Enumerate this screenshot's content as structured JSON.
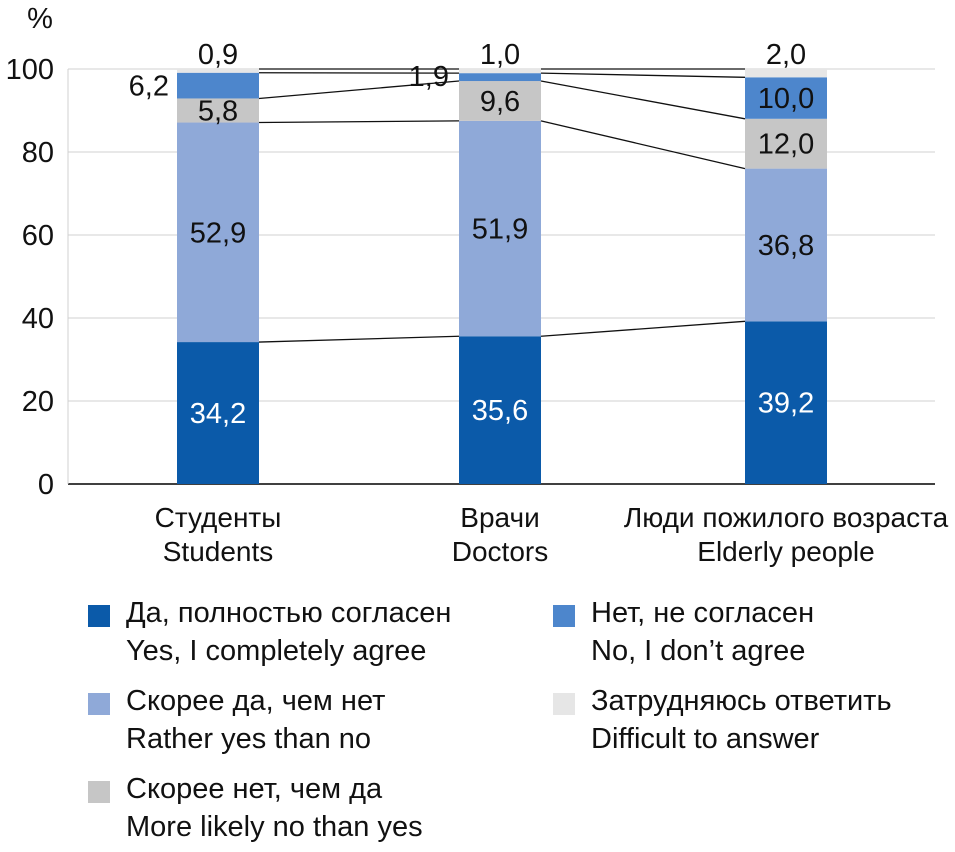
{
  "chart_data": {
    "type": "bar",
    "stacked": true,
    "y_unit": "%",
    "ylim": [
      0,
      100
    ],
    "yticks": [
      "0",
      "20",
      "40",
      "60",
      "80",
      "100"
    ],
    "grid": true,
    "categories": [
      [
        "Студенты",
        "Students"
      ],
      [
        "Врачи",
        "Doctors"
      ],
      [
        "Люди пожилого возраста",
        "Elderly people"
      ]
    ],
    "series": [
      {
        "name": [
          "Да, полностью согласен",
          "Yes, I completely agree"
        ],
        "color": "#0b5aa9",
        "values": [
          34.2,
          35.6,
          39.2
        ],
        "labels": [
          "34,2",
          "35,6",
          "39,2"
        ]
      },
      {
        "name": [
          "Скорее да, чем нет",
          "Rather yes than no"
        ],
        "color": "#8fa9d8",
        "values": [
          52.9,
          51.9,
          36.8
        ],
        "labels": [
          "52,9",
          "51,9",
          "36,8"
        ]
      },
      {
        "name": [
          "Скорее нет, чем да",
          "More likely no than yes"
        ],
        "color": "#c6c6c6",
        "values": [
          5.8,
          9.6,
          12.0
        ],
        "labels": [
          "5,8",
          "9,6",
          "12,0"
        ]
      },
      {
        "name": [
          "Нет, не согласен",
          "No, I don’t agree"
        ],
        "color": "#4d86cc",
        "values": [
          6.2,
          1.9,
          10.0
        ],
        "labels": [
          "6,2",
          "1,9",
          "10,0"
        ]
      },
      {
        "name": [
          "Затрудняюсь ответить",
          "Difficult to answer"
        ],
        "color": "#e6e6e6",
        "values": [
          0.9,
          1.0,
          2.0
        ],
        "labels": [
          "0,9",
          "1,0",
          "2,0"
        ]
      }
    ]
  }
}
